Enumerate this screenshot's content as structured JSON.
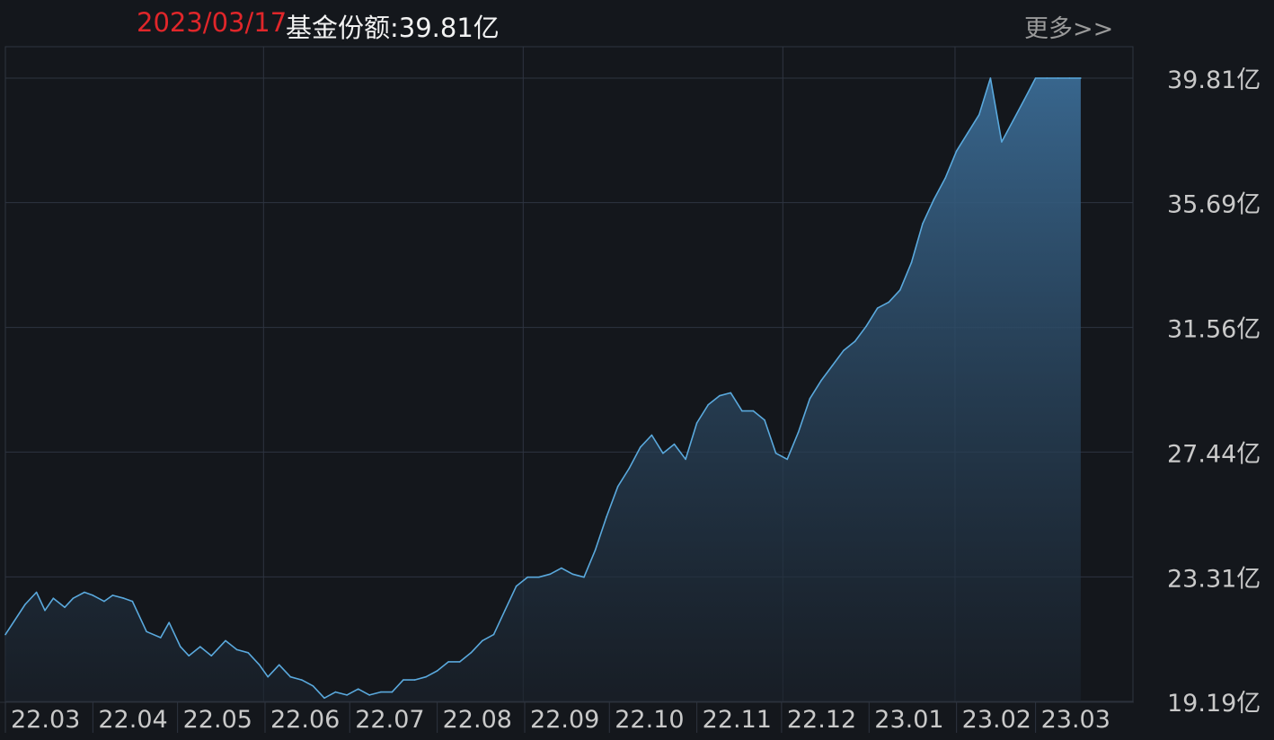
{
  "header": {
    "date": "2023/03/17",
    "value_label": "基金份额:39.81亿",
    "more_link": "更多>>"
  },
  "colors": {
    "background": "#14171c",
    "grid": "#2e3440",
    "line": "#5aa9dd",
    "fill_top": "#3a6a93",
    "date_red": "#e0262a"
  },
  "chart_data": {
    "type": "area",
    "title": "",
    "xlabel": "",
    "ylabel": "",
    "ylim": [
      19.19,
      39.81
    ],
    "y_ticks": [
      39.81,
      35.69,
      31.56,
      27.44,
      23.31,
      19.19
    ],
    "y_tick_labels": [
      "39.81亿",
      "35.69亿",
      "31.56亿",
      "27.44亿",
      "23.31亿",
      "19.19亿"
    ],
    "x_tick_labels": [
      "22.03",
      "22.04",
      "22.05",
      "22.06",
      "22.07",
      "22.08",
      "22.09",
      "22.10",
      "22.11",
      "22.12",
      "23.01",
      "23.02",
      "23.03"
    ],
    "x_gridlines_after": [
      "22.05",
      "22.08",
      "22.11",
      "23.01"
    ],
    "grid": true,
    "unit": "亿",
    "series": [
      {
        "x": [
          "2022-03-01",
          "2022-03-08",
          "2022-03-12",
          "2022-03-15",
          "2022-03-18",
          "2022-03-22",
          "2022-03-25",
          "2022-03-29",
          "2022-04-01",
          "2022-04-05",
          "2022-04-08",
          "2022-04-12",
          "2022-04-15",
          "2022-04-20",
          "2022-04-25",
          "2022-04-28",
          "2022-05-02",
          "2022-05-05",
          "2022-05-09",
          "2022-05-13",
          "2022-05-18",
          "2022-05-22",
          "2022-05-26",
          "2022-05-30",
          "2022-06-02",
          "2022-06-06",
          "2022-06-10",
          "2022-06-14",
          "2022-06-18",
          "2022-06-22",
          "2022-06-26",
          "2022-06-30",
          "2022-07-04",
          "2022-07-08",
          "2022-07-12",
          "2022-07-16",
          "2022-07-20",
          "2022-07-24",
          "2022-07-28",
          "2022-08-01",
          "2022-08-05",
          "2022-08-09",
          "2022-08-13",
          "2022-08-17",
          "2022-08-21",
          "2022-08-25",
          "2022-08-29",
          "2022-09-02",
          "2022-09-06",
          "2022-09-10",
          "2022-09-14",
          "2022-09-18",
          "2022-09-22",
          "2022-09-26",
          "2022-09-30",
          "2022-10-04",
          "2022-10-08",
          "2022-10-12",
          "2022-10-16",
          "2022-10-20",
          "2022-10-24",
          "2022-10-28",
          "2022-11-01",
          "2022-11-05",
          "2022-11-09",
          "2022-11-13",
          "2022-11-17",
          "2022-11-21",
          "2022-11-25",
          "2022-11-29",
          "2022-12-03",
          "2022-12-07",
          "2022-12-11",
          "2022-12-15",
          "2022-12-19",
          "2022-12-23",
          "2022-12-27",
          "2022-12-31",
          "2023-01-04",
          "2023-01-08",
          "2023-01-12",
          "2023-01-16",
          "2023-01-20",
          "2023-01-24",
          "2023-01-28",
          "2023-02-01",
          "2023-02-05",
          "2023-02-09",
          "2023-02-13",
          "2023-02-17",
          "2023-02-21",
          "2023-02-25",
          "2023-03-01",
          "2023-03-05",
          "2023-03-09",
          "2023-03-13",
          "2023-03-17"
        ],
        "values": [
          21.4,
          22.4,
          22.8,
          22.2,
          22.6,
          22.3,
          22.6,
          22.8,
          22.7,
          22.5,
          22.7,
          22.6,
          22.5,
          21.5,
          21.3,
          21.8,
          21.0,
          20.7,
          21.0,
          20.7,
          21.2,
          20.9,
          20.8,
          20.4,
          20.0,
          20.4,
          20.0,
          19.9,
          19.7,
          19.3,
          19.5,
          19.4,
          19.6,
          19.4,
          19.5,
          19.5,
          19.9,
          19.9,
          20.0,
          20.2,
          20.5,
          20.5,
          20.8,
          21.2,
          21.4,
          22.2,
          23.0,
          23.3,
          23.3,
          23.4,
          23.6,
          23.4,
          23.3,
          24.2,
          25.3,
          26.3,
          26.9,
          27.6,
          28.0,
          27.4,
          27.7,
          27.2,
          28.4,
          29.0,
          29.3,
          29.4,
          28.8,
          28.8,
          28.5,
          27.4,
          27.2,
          28.1,
          29.2,
          29.8,
          30.3,
          30.8,
          31.1,
          31.6,
          32.2,
          32.4,
          32.8,
          33.7,
          35.0,
          35.8,
          36.5,
          37.4,
          38.0,
          38.6,
          39.81,
          37.7,
          38.4,
          39.1,
          39.81,
          39.81,
          39.81,
          39.81,
          39.81
        ]
      }
    ]
  }
}
